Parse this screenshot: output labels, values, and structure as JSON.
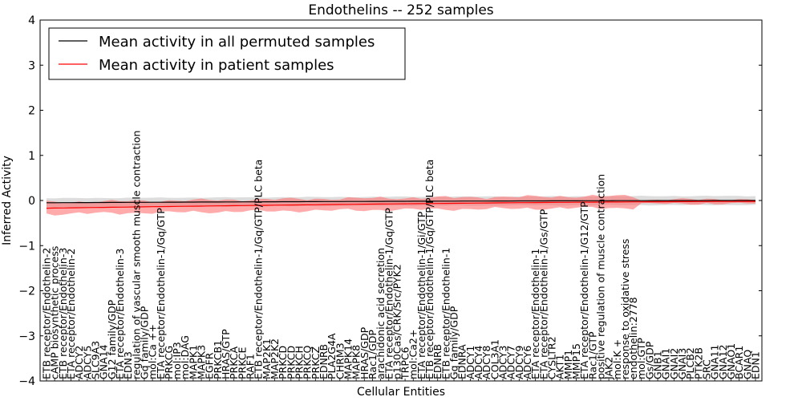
{
  "chart_data": {
    "type": "line",
    "title": "Endothelins -- 252 samples",
    "xlabel": "Cellular Entities",
    "ylabel": "Inferred Activity",
    "ylim": [
      -4,
      4
    ],
    "yticks": [
      4,
      3,
      2,
      1,
      0,
      -1,
      -2,
      -3,
      -4
    ],
    "grid": false,
    "legend_position": "top-left",
    "categories": [
      "ETB receptor/Endothelin-2",
      "cAMP biosynthetic process",
      "ETB receptor/Endothelin-3",
      "ETA receptor/Endothelin-2",
      "ADCY2",
      "ADCY5",
      "SLC9A3",
      "GNA14",
      "G12 family/GDP",
      "ETA receptor/Endothelin-3",
      "EDN3",
      "regulation of vascular smooth muscle contraction",
      "Gq family/GDP",
      "mol:Ca ++",
      "ETA receptor/Endothelin-1/Gq/GTP",
      "PRKCG",
      "mol:IP3",
      "mol:DAG",
      "MAPK1",
      "MAPK3",
      "EGFR",
      "PRKCB1",
      "HRAS/GTP",
      "PRKCA",
      "PRKCE",
      "RAF1",
      "ETB receptor/Endothelin-1/Gq/GTP/PLC beta",
      "MAP2K1",
      "MAP2K2",
      "PRKCD",
      "PRKCD",
      "PRKCH",
      "PRKCQ",
      "PRKCZ",
      "EDNRB",
      "PLA2G4A",
      "CHRM3",
      "MAPK14",
      "MAPK8",
      "HRAS/GDP",
      "Rac1/GDP",
      "arachidonic acid secretion",
      "ETA receptor/Endothelin-1/Gq/GTP",
      "p130Cas/CRK/Src/PYK2",
      "TRPC6",
      "mol:Ca2+",
      "ETA receptor/Endothelin-1/Gi/GTP",
      "ETB receptor/Endothelin-1/Gq/GTP/PLC beta",
      "EDNRB",
      "ETB receptor/Endothelin-1",
      "Gq family/GDP",
      "EDNRA",
      "ADCY1",
      "ADCY4",
      "ADCY8",
      "COL3A1",
      "ADCY3",
      "ADCY7",
      "ADCY9",
      "ADCY6",
      "ETA receptor/Endothelin-1",
      "ETA receptor/Endothelin-1/Gs/GTP",
      "CYSLTR2",
      "AKT1",
      "MMP1",
      "MMP15",
      "ETA receptor/Endothelin-1/G12/GTP",
      "Rac1/GTP",
      "positive regulation of muscle contraction",
      "JAK2",
      "mol:K +",
      "response to oxidative stress",
      "endothelin:2778",
      "mol:GTP",
      "Gs/GDP",
      "GNB1",
      "GNAI1",
      "GNAI2",
      "GNAI3",
      "PLCB2",
      "PTK2B",
      "SRC",
      "GNA11",
      "GNA12",
      "GNAO1",
      "BCAR1",
      "GNAQ",
      "EDN1"
    ],
    "series": [
      {
        "name": "Mean activity in all permuted samples",
        "color": "#000000",
        "band_color": "#b3b3b3",
        "start_value": -0.05,
        "end_value": 0.0,
        "band_halfwidth": 0.1
      },
      {
        "name": "Mean activity in patient samples",
        "color": "#ff0000",
        "band_color": "#ff6666",
        "start_value": -0.17,
        "end_value": -0.02,
        "band_halfwidth": 0.13
      }
    ]
  }
}
